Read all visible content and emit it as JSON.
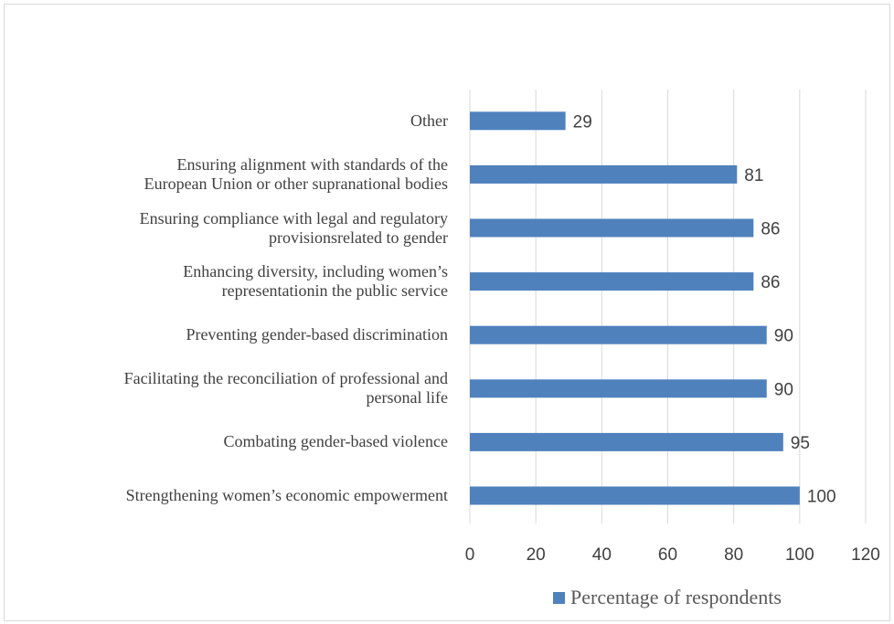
{
  "chart_data": {
    "type": "bar",
    "orientation": "horizontal",
    "title": "",
    "xlabel": "",
    "ylabel": "",
    "categories": [
      "Other",
      "Ensuring alignment with standards of the European Union or other supranational bodies",
      "Ensuring compliance with legal and regulatory provisionsrelated to gender",
      "Enhancing diversity, including women’s representationin the public service",
      "Preventing gender-based discrimination",
      "Facilitating the reconciliation of professional and personal life",
      "Combating gender-based violence",
      "Strengthening women’s economic empowerment"
    ],
    "category_lines": [
      [
        "Other"
      ],
      [
        "Ensuring alignment with standards of the",
        "European Union or other supranational bodies"
      ],
      [
        "Ensuring compliance with legal and regulatory",
        "provisionsrelated to gender"
      ],
      [
        "Enhancing diversity, including women’s",
        "representationin the public service"
      ],
      [
        "Preventing gender-based discrimination"
      ],
      [
        "Facilitating the reconciliation of professional and",
        "personal life"
      ],
      [
        "Combating gender-based violence"
      ],
      [
        "Strengthening women’s economic empowerment"
      ]
    ],
    "series": [
      {
        "name": "Percentage of respondents",
        "values": [
          29,
          81,
          86,
          86,
          90,
          90,
          95,
          100
        ],
        "color": "#4f81bd"
      }
    ],
    "xlim": [
      0,
      120
    ],
    "xticks": [
      0,
      20,
      40,
      60,
      80,
      100,
      120
    ],
    "grid": true,
    "legend_position": "bottom"
  },
  "colors": {
    "bar": "#4f81bd",
    "grid": "#d9d9d9",
    "text": "#404040"
  }
}
